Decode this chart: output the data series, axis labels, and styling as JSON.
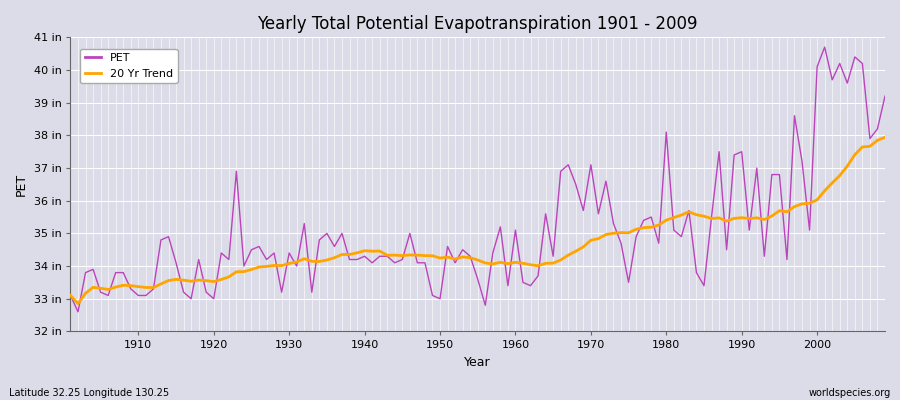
{
  "title": "Yearly Total Potential Evapotranspiration 1901 - 2009",
  "xlabel": "Year",
  "ylabel": "PET",
  "bottom_left_label": "Latitude 32.25 Longitude 130.25",
  "bottom_right_label": "worldspecies.org",
  "pet_color": "#BB44BB",
  "trend_color": "#FFA500",
  "bg_color": "#DCDCE8",
  "plot_bg_color": "#DCDCE8",
  "ylim": [
    32,
    41
  ],
  "ytick_labels": [
    "32 in",
    "33 in",
    "34 in",
    "35 in",
    "36 in",
    "37 in",
    "38 in",
    "39 in",
    "40 in",
    "41 in"
  ],
  "ytick_values": [
    32,
    33,
    34,
    35,
    36,
    37,
    38,
    39,
    40,
    41
  ],
  "xlim": [
    1901,
    2009
  ],
  "xtick_values": [
    1910,
    1920,
    1930,
    1940,
    1950,
    1960,
    1970,
    1980,
    1990,
    2000
  ],
  "years": [
    1901,
    1902,
    1903,
    1904,
    1905,
    1906,
    1907,
    1908,
    1909,
    1910,
    1911,
    1912,
    1913,
    1914,
    1915,
    1916,
    1917,
    1918,
    1919,
    1920,
    1921,
    1922,
    1923,
    1924,
    1925,
    1926,
    1927,
    1928,
    1929,
    1930,
    1931,
    1932,
    1933,
    1934,
    1935,
    1936,
    1937,
    1938,
    1939,
    1940,
    1941,
    1942,
    1943,
    1944,
    1945,
    1946,
    1947,
    1948,
    1949,
    1950,
    1951,
    1952,
    1953,
    1954,
    1955,
    1956,
    1957,
    1958,
    1959,
    1960,
    1961,
    1962,
    1963,
    1964,
    1965,
    1966,
    1967,
    1968,
    1969,
    1970,
    1971,
    1972,
    1973,
    1974,
    1975,
    1976,
    1977,
    1978,
    1979,
    1980,
    1981,
    1982,
    1983,
    1984,
    1985,
    1986,
    1987,
    1988,
    1989,
    1990,
    1991,
    1992,
    1993,
    1994,
    1995,
    1996,
    1997,
    1998,
    1999,
    2000,
    2001,
    2002,
    2003,
    2004,
    2005,
    2006,
    2007,
    2008,
    2009
  ],
  "pet_values": [
    33.1,
    32.6,
    33.8,
    33.9,
    33.2,
    33.1,
    33.8,
    33.8,
    33.3,
    33.1,
    33.1,
    33.3,
    34.8,
    34.9,
    34.1,
    33.2,
    33.0,
    34.2,
    33.2,
    33.0,
    34.4,
    34.2,
    36.9,
    34.0,
    34.5,
    34.6,
    34.2,
    34.4,
    33.2,
    34.4,
    34.0,
    35.3,
    33.2,
    34.8,
    35.0,
    34.6,
    35.0,
    34.2,
    34.2,
    34.3,
    34.1,
    34.3,
    34.3,
    34.1,
    34.2,
    35.0,
    34.1,
    34.1,
    33.1,
    33.0,
    34.6,
    34.1,
    34.5,
    34.3,
    33.6,
    32.8,
    34.4,
    35.2,
    33.4,
    35.1,
    33.5,
    33.4,
    33.7,
    35.6,
    34.3,
    36.9,
    37.1,
    36.5,
    35.7,
    37.1,
    35.6,
    36.6,
    35.3,
    34.7,
    33.5,
    34.9,
    35.4,
    35.5,
    34.7,
    38.1,
    35.1,
    34.9,
    35.7,
    33.8,
    33.4,
    35.5,
    37.5,
    34.5,
    37.4,
    37.5,
    35.1,
    37.0,
    34.3,
    36.8,
    36.8,
    34.2,
    38.6,
    37.2,
    35.1,
    40.1,
    40.7,
    39.7,
    40.2,
    39.6,
    40.4,
    40.2,
    37.9,
    38.2,
    39.2
  ]
}
